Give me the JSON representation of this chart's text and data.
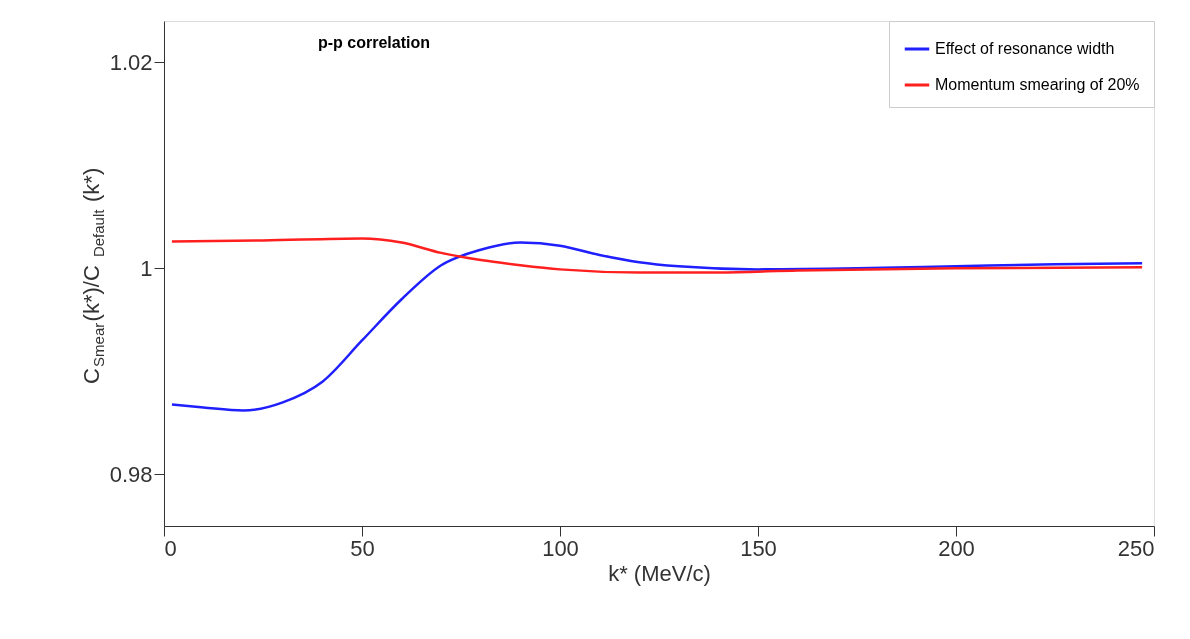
{
  "chart_data": {
    "type": "line",
    "xlabel": "k* (MeV/c)",
    "ylabel": "C$_{Smear}$(k*)/C$_{Default}$(k*)",
    "annotations": [
      "p-p correlation"
    ],
    "series": [
      {
        "name": "Effect of resonance width",
        "color": "#1f1fff",
        "x": [
          2,
          10,
          20,
          30,
          40,
          50,
          60,
          70,
          80,
          90,
          100,
          110,
          120,
          130,
          150,
          175,
          200,
          225,
          247
        ],
        "values": [
          0.9868,
          0.9865,
          0.9862,
          0.987,
          0.989,
          0.993,
          0.997,
          1.0003,
          1.0018,
          1.0025,
          1.0022,
          1.0013,
          1.0006,
          1.0002,
          0.9999,
          1.0,
          1.0002,
          1.0004,
          1.0005
        ]
      },
      {
        "name": "Momentum smearing of 20%",
        "color": "#ff1f1f",
        "x": [
          2,
          25,
          50,
          60,
          70,
          80,
          90,
          100,
          120,
          140,
          160,
          200,
          247
        ],
        "values": [
          1.0026,
          1.0027,
          1.0029,
          1.0025,
          1.0015,
          1.0008,
          1.0003,
          0.9999,
          0.9996,
          0.9996,
          0.9998,
          1.0,
          1.0001
        ]
      }
    ],
    "xlim": [
      0,
      250
    ],
    "xticks": [
      0,
      50,
      100,
      150,
      200,
      250
    ],
    "ylim": [
      0.975,
      1.024
    ],
    "yticks": [
      0.98,
      1,
      1.02
    ],
    "grid": false,
    "legend": "top right",
    "marker": "none",
    "line_style": "solid"
  }
}
